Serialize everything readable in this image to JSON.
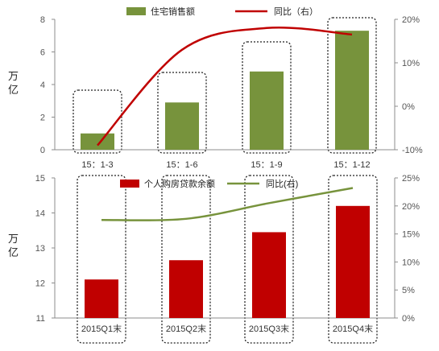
{
  "chart_data": [
    {
      "type": "bar",
      "categories": [
        "15：1-3",
        "15：1-6",
        "15：1-9",
        "15：1-12"
      ],
      "series": [
        {
          "name": "住宅销售额",
          "type": "bar",
          "axis": "left",
          "color": "#77933c",
          "values": [
            1.0,
            2.9,
            4.8,
            7.3
          ]
        },
        {
          "name": "同比（右）",
          "type": "line",
          "axis": "right",
          "color": "#c00000",
          "values": [
            -0.09,
            0.13,
            0.18,
            0.165
          ]
        }
      ],
      "ylabel": "万亿",
      "ylim": [
        0,
        8
      ],
      "yticks": [
        "0",
        "2",
        "4",
        "6",
        "8"
      ],
      "y2lim": [
        -0.1,
        0.2
      ],
      "y2ticks": [
        "-10%",
        "0%",
        "10%",
        "20%"
      ],
      "legend": "top-center",
      "grid": false
    },
    {
      "type": "bar",
      "categories": [
        "2015Q1末",
        "2015Q2末",
        "2015Q3末",
        "2015Q4末"
      ],
      "series": [
        {
          "name": "个人购房贷款余额",
          "type": "bar",
          "axis": "left",
          "color": "#c00000",
          "values": [
            12.1,
            12.65,
            13.45,
            14.2
          ]
        },
        {
          "name": "同比(右)",
          "type": "line",
          "axis": "right",
          "color": "#77933c",
          "values": [
            0.175,
            0.177,
            0.205,
            0.232
          ]
        }
      ],
      "ylabel": "万亿",
      "ylim": [
        11,
        15
      ],
      "yticks": [
        "11",
        "12",
        "13",
        "14",
        "15"
      ],
      "y2lim": [
        0,
        0.25
      ],
      "y2ticks": [
        "0%",
        "5%",
        "10%",
        "15%",
        "20%",
        "25%"
      ],
      "legend": "top-center",
      "grid": false
    }
  ]
}
